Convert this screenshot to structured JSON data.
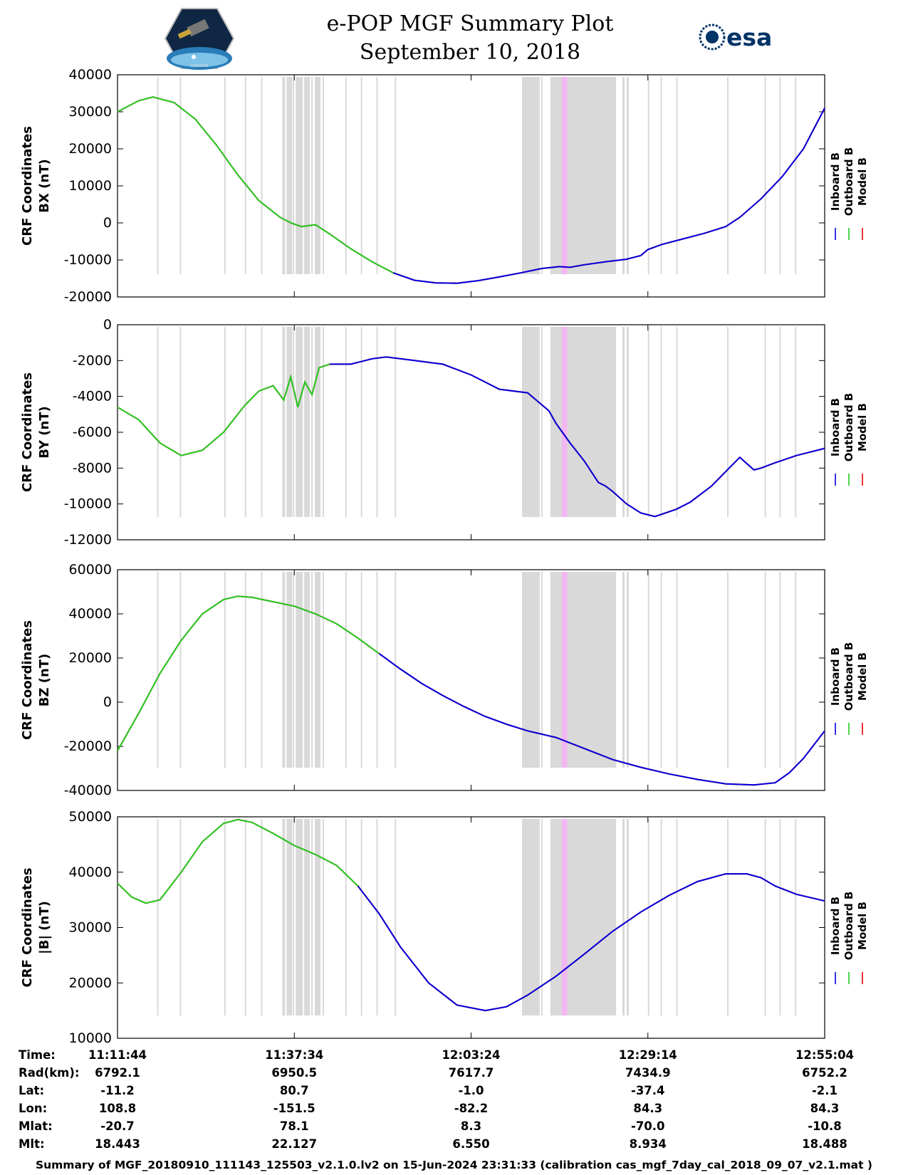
{
  "page": {
    "title": "e-POP MGF Summary Plot",
    "date": "September 10, 2018",
    "logo_left": "CASSIOPE",
    "logo_right": "esa",
    "footer": "Summary of MGF_20180910_111143_125503_v2.1.0.lv2 on 15-Jun-2024 23:31:33 (calibration cas_mgf_7day_cal_2018_09_07_v2.1.mat )"
  },
  "colors": {
    "inboard": "#0000dd",
    "outboard": "#22cc22",
    "model": "#ee0000",
    "gap_band": "#d9d9d9",
    "magenta_band": "#f2b7f2"
  },
  "chart_data": [
    {
      "type": "line",
      "ylabel": [
        "CRF Coordinates",
        "BX (nT)"
      ],
      "ylim": [
        -20000,
        40000
      ],
      "yticks": [
        -20000,
        -10000,
        0,
        10000,
        20000,
        30000,
        40000
      ],
      "legend": [
        "Inboard B",
        "Outboard B",
        "Model B"
      ],
      "switch_x": 0.39,
      "x": [
        0,
        0.03,
        0.05,
        0.08,
        0.11,
        0.14,
        0.17,
        0.2,
        0.23,
        0.245,
        0.26,
        0.28,
        0.3,
        0.33,
        0.36,
        0.39,
        0.42,
        0.45,
        0.48,
        0.51,
        0.54,
        0.57,
        0.6,
        0.625,
        0.64,
        0.66,
        0.69,
        0.72,
        0.74,
        0.75,
        0.77,
        0.8,
        0.83,
        0.86,
        0.88,
        0.91,
        0.94,
        0.97,
        1.0
      ],
      "y": [
        30000,
        33000,
        34000,
        32500,
        28000,
        21000,
        13000,
        6000,
        1500,
        0,
        -1000,
        -500,
        -3000,
        -7000,
        -10500,
        -13500,
        -15500,
        -16200,
        -16300,
        -15600,
        -14600,
        -13500,
        -12300,
        -11800,
        -12000,
        -11300,
        -10500,
        -9800,
        -8800,
        -7200,
        -5800,
        -4300,
        -2800,
        -1000,
        1500,
        6500,
        12500,
        20000,
        31000
      ]
    },
    {
      "type": "line",
      "ylabel": [
        "CRF Coordinates",
        "BY (nT)"
      ],
      "ylim": [
        -12000,
        0
      ],
      "yticks": [
        -12000,
        -10000,
        -8000,
        -6000,
        -4000,
        -2000,
        0
      ],
      "legend": [
        "Inboard B",
        "Outboard B",
        "Model B"
      ],
      "switch_x": 0.3,
      "x": [
        0,
        0.03,
        0.06,
        0.09,
        0.12,
        0.15,
        0.16,
        0.18,
        0.2,
        0.22,
        0.235,
        0.245,
        0.255,
        0.265,
        0.275,
        0.285,
        0.3,
        0.33,
        0.36,
        0.38,
        0.42,
        0.46,
        0.5,
        0.54,
        0.58,
        0.61,
        0.62,
        0.64,
        0.66,
        0.68,
        0.69,
        0.7,
        0.72,
        0.74,
        0.76,
        0.79,
        0.81,
        0.84,
        0.88,
        0.9,
        0.91,
        0.93,
        0.96,
        1.0
      ],
      "y": [
        -4600,
        -5300,
        -6600,
        -7300,
        -7000,
        -6000,
        -5500,
        -4500,
        -3700,
        -3400,
        -4200,
        -2900,
        -4600,
        -3200,
        -3900,
        -2400,
        -2200,
        -2200,
        -1900,
        -1800,
        -2000,
        -2200,
        -2800,
        -3600,
        -3800,
        -4800,
        -5500,
        -6600,
        -7600,
        -8800,
        -9000,
        -9300,
        -10000,
        -10500,
        -10700,
        -10300,
        -9900,
        -9000,
        -7400,
        -8100,
        -8000,
        -7700,
        -7300,
        -6900
      ]
    },
    {
      "type": "line",
      "ylabel": [
        "CRF Coordinates",
        "BZ (nT)"
      ],
      "ylim": [
        -40000,
        60000
      ],
      "yticks": [
        -40000,
        -20000,
        0,
        20000,
        40000,
        60000
      ],
      "legend": [
        "Inboard B",
        "Outboard B",
        "Model B"
      ],
      "switch_x": 0.36,
      "x": [
        0,
        0.03,
        0.06,
        0.09,
        0.12,
        0.15,
        0.17,
        0.19,
        0.22,
        0.25,
        0.28,
        0.31,
        0.34,
        0.37,
        0.4,
        0.43,
        0.46,
        0.49,
        0.52,
        0.55,
        0.58,
        0.62,
        0.64,
        0.66,
        0.7,
        0.74,
        0.78,
        0.82,
        0.86,
        0.9,
        0.93,
        0.95,
        0.97,
        1.0
      ],
      "y": [
        -22000,
        -5000,
        13000,
        28000,
        40000,
        46500,
        48000,
        47500,
        45500,
        43500,
        40000,
        35500,
        29000,
        22000,
        15000,
        8500,
        3000,
        -2000,
        -6500,
        -10000,
        -13000,
        -16000,
        -18500,
        -21000,
        -26000,
        -29500,
        -32500,
        -35000,
        -37000,
        -37500,
        -36500,
        -32000,
        -25500,
        -13000
      ]
    },
    {
      "type": "line",
      "ylabel": [
        "CRF Coordinates",
        "|B| (nT)"
      ],
      "ylim": [
        10000,
        50000
      ],
      "yticks": [
        10000,
        20000,
        30000,
        40000,
        50000
      ],
      "legend": [
        "Inboard B",
        "Outboard B",
        "Model B"
      ],
      "switch_x": 0.32,
      "x": [
        0,
        0.02,
        0.04,
        0.06,
        0.09,
        0.12,
        0.15,
        0.17,
        0.19,
        0.22,
        0.25,
        0.28,
        0.31,
        0.34,
        0.37,
        0.4,
        0.44,
        0.48,
        0.52,
        0.55,
        0.58,
        0.62,
        0.66,
        0.7,
        0.74,
        0.78,
        0.82,
        0.86,
        0.89,
        0.91,
        0.93,
        0.96,
        1.0
      ],
      "y": [
        38000,
        35500,
        34400,
        35000,
        40000,
        45500,
        48800,
        49500,
        49000,
        47000,
        44800,
        43200,
        41200,
        37500,
        32500,
        26500,
        20000,
        16000,
        15000,
        15700,
        17800,
        21200,
        25200,
        29300,
        32800,
        35800,
        38300,
        39700,
        39700,
        39000,
        37500,
        36000,
        34800
      ]
    }
  ],
  "x_axis": {
    "tick_fracs": [
      0,
      0.25,
      0.5,
      0.75,
      1.0
    ],
    "row_labels": [
      "Time:",
      "Rad(km):",
      "Lat:",
      "Lon:",
      "Mlat:",
      "Mlt:"
    ],
    "columns": [
      [
        "11:11:44",
        "6792.1",
        "-11.2",
        "108.8",
        "-20.7",
        "18.443"
      ],
      [
        "11:37:34",
        "6950.5",
        "80.7",
        "-151.5",
        "78.1",
        "22.127"
      ],
      [
        "12:03:24",
        "7617.7",
        "-1.0",
        "-82.2",
        "8.3",
        "6.550"
      ],
      [
        "12:29:14",
        "7434.9",
        "-37.4",
        "84.3",
        "-70.0",
        "8.934"
      ],
      [
        "12:55:04",
        "6752.2",
        "-2.1",
        "84.3",
        "-10.8",
        "18.488"
      ]
    ]
  },
  "gap_bands": [
    [
      0.056,
      0.058
    ],
    [
      0.088,
      0.09
    ],
    [
      0.151,
      0.153
    ],
    [
      0.18,
      0.182
    ],
    [
      0.203,
      0.205
    ],
    [
      0.233,
      0.237
    ],
    [
      0.239,
      0.247
    ],
    [
      0.248,
      0.25
    ],
    [
      0.252,
      0.262
    ],
    [
      0.264,
      0.272
    ],
    [
      0.274,
      0.276
    ],
    [
      0.279,
      0.287
    ],
    [
      0.29,
      0.292
    ],
    [
      0.322,
      0.324
    ],
    [
      0.344,
      0.346
    ],
    [
      0.366,
      0.368
    ],
    [
      0.392,
      0.394
    ],
    [
      0.572,
      0.597
    ],
    [
      0.599,
      0.601
    ],
    [
      0.612,
      0.628
    ],
    [
      0.636,
      0.705
    ],
    [
      0.714,
      0.717
    ],
    [
      0.72,
      0.723
    ],
    [
      0.75,
      0.752
    ],
    [
      0.768,
      0.77
    ],
    [
      0.79,
      0.792
    ],
    [
      0.862,
      0.864
    ],
    [
      0.915,
      0.917
    ],
    [
      0.936,
      0.938
    ],
    [
      0.958,
      0.96
    ]
  ],
  "magenta_band": [
    0.628,
    0.636
  ]
}
